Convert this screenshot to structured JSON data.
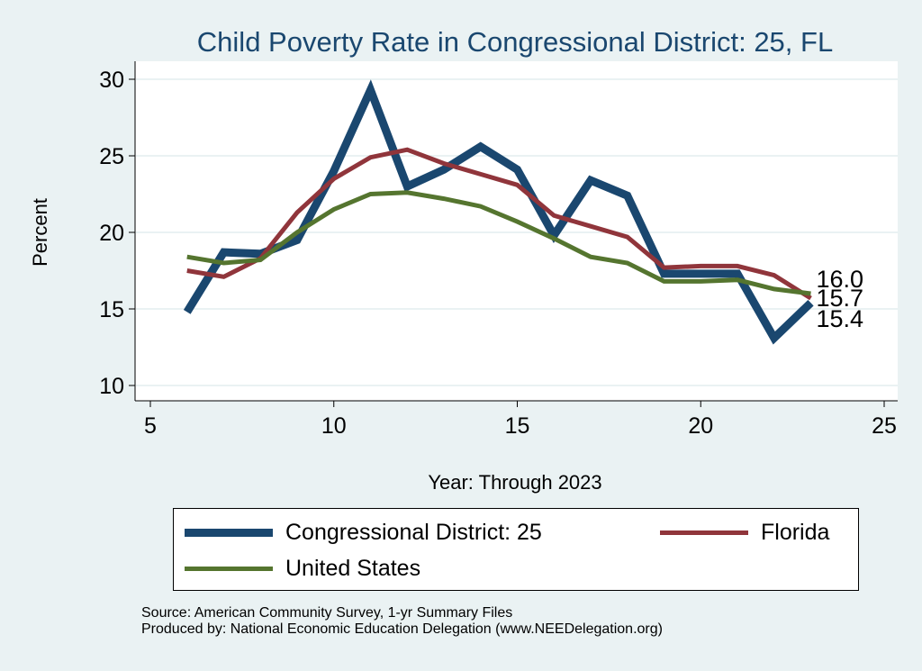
{
  "chart_data": {
    "type": "line",
    "title": "Child Poverty Rate in Congressional District:  25, FL",
    "xlabel": "Year: Through 2023",
    "ylabel": "Percent",
    "xlim": [
      5,
      25
    ],
    "ylim": [
      10,
      30
    ],
    "xticks": [
      "5",
      "10",
      "15",
      "20",
      "25"
    ],
    "yticks": [
      "10",
      "15",
      "20",
      "25",
      "30"
    ],
    "x": [
      6,
      7,
      8,
      9,
      10,
      11,
      12,
      13,
      14,
      15,
      16,
      17,
      18,
      19,
      20,
      21,
      22,
      23
    ],
    "series": [
      {
        "name": "Congressional District:  25",
        "color": "#1a476f",
        "width": 9,
        "values": [
          14.8,
          18.7,
          18.6,
          19.5,
          24.0,
          29.3,
          23.0,
          24.1,
          25.6,
          24.1,
          19.8,
          23.4,
          22.4,
          17.3,
          17.3,
          17.3,
          13.1,
          15.4
        ],
        "end_label": "15.4"
      },
      {
        "name": "Florida",
        "color": "#90353b",
        "width": 5,
        "values": [
          17.5,
          17.1,
          18.3,
          21.3,
          23.5,
          24.9,
          25.4,
          24.5,
          23.8,
          23.1,
          21.1,
          20.4,
          19.7,
          17.7,
          17.8,
          17.8,
          17.2,
          15.7
        ],
        "end_label": "15.7"
      },
      {
        "name": "United States",
        "color": "#55752f",
        "width": 5,
        "values": [
          18.4,
          18.0,
          18.2,
          20.0,
          21.5,
          22.5,
          22.6,
          22.2,
          21.7,
          20.7,
          19.6,
          18.4,
          18.0,
          16.8,
          16.8,
          16.9,
          16.3,
          16.0
        ],
        "end_label": "16.0"
      }
    ],
    "grid": true,
    "legend_placement": "bottom"
  },
  "source": "Source: American Community Survey, 1-yr Summary Files",
  "producer": "Produced by: National Economic Education Delegation (www.NEEDelegation.org)"
}
